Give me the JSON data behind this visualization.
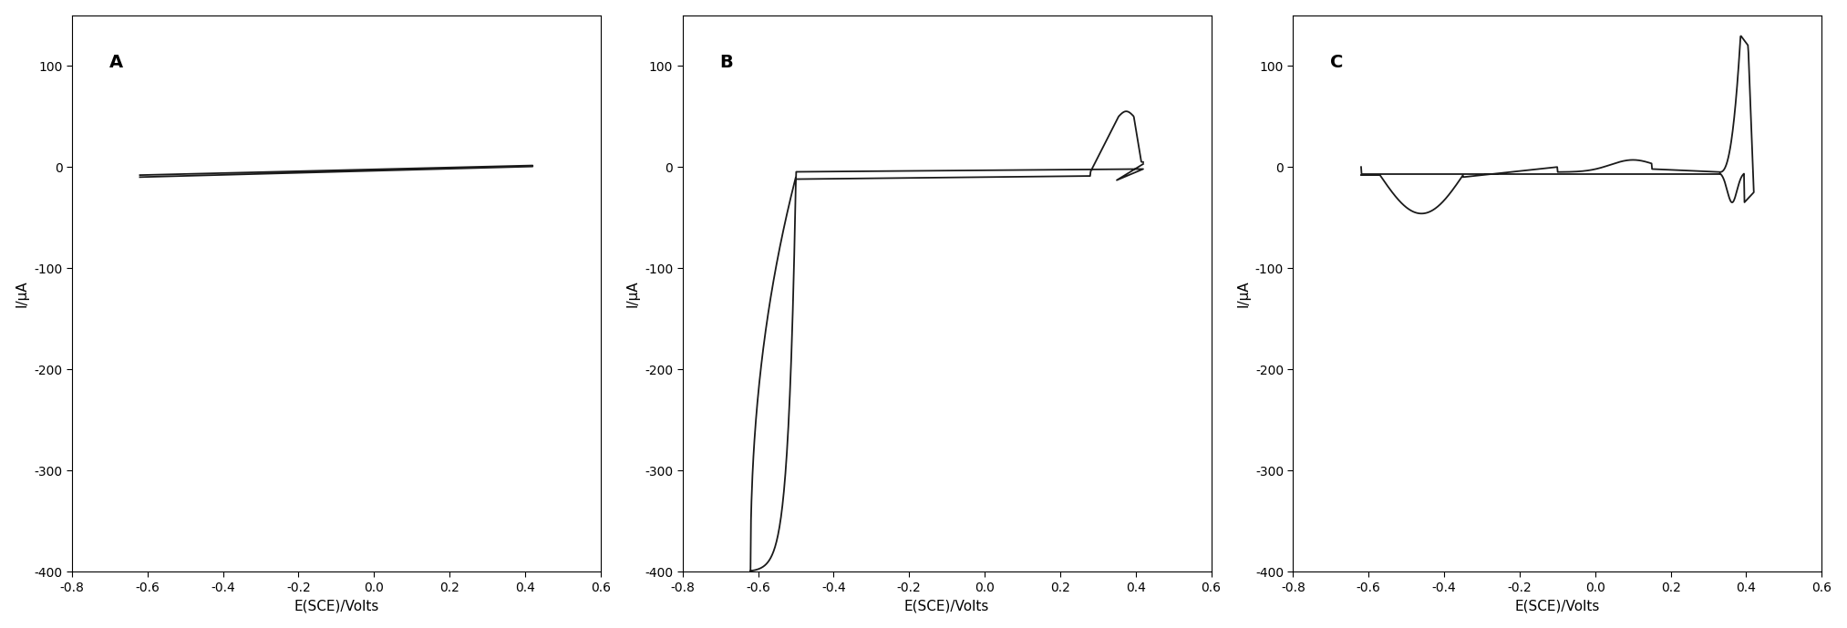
{
  "panels": [
    "A",
    "B",
    "C"
  ],
  "xlabel": "E(SCE)/Volts",
  "ylabel": "I/μA",
  "xlim": [
    -0.8,
    0.6
  ],
  "ylim": [
    -400,
    150
  ],
  "yticks": [
    -400,
    -300,
    -200,
    -100,
    0,
    100
  ],
  "xticks": [
    -0.8,
    -0.6,
    -0.4,
    -0.2,
    0.0,
    0.2,
    0.4,
    0.6
  ],
  "xtick_labels": [
    "-0.8",
    "-0.6",
    "-0.4",
    "-0.2",
    "0.0",
    "0.2",
    "0.4",
    "0.6"
  ],
  "line_color": "#1a1a1a",
  "line_width": 1.3,
  "background_color": "#ffffff",
  "label_fontsize": 11,
  "panel_label_fontsize": 14,
  "tick_fontsize": 10
}
